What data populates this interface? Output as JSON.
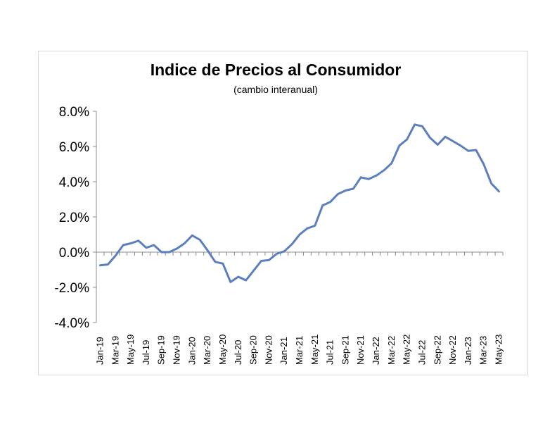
{
  "chart_data": {
    "type": "line",
    "title": "Indice de Precios al Consumidor",
    "subtitle": "(cambio interanual)",
    "xlabel": "",
    "ylabel": "",
    "ylim": [
      -4.0,
      8.0
    ],
    "y_ticks": [
      "8.0%",
      "6.0%",
      "4.0%",
      "2.0%",
      "0.0%",
      "-2.0%",
      "-4.0%"
    ],
    "y_tick_values": [
      8,
      6,
      4,
      2,
      0,
      -2,
      -4
    ],
    "x_tick_labels": [
      "Jan-19",
      "Mar-19",
      "May-19",
      "Jul-19",
      "Sep-19",
      "Nov-19",
      "Jan-20",
      "Mar-20",
      "May-20",
      "Jul-20",
      "Sep-20",
      "Nov-20",
      "Jan-21",
      "Mar-21",
      "May-21",
      "Jul-21",
      "Sep-21",
      "Nov-21",
      "Jan-22",
      "Mar-22",
      "May-22",
      "Jul-22",
      "Sep-22",
      "Nov-22",
      "Jan-23",
      "Mar-23",
      "May-23"
    ],
    "grid": false,
    "legend": "none",
    "line_color": "#5b7fbe",
    "series": [
      {
        "x": [
          "Jan-19",
          "Feb-19",
          "Mar-19",
          "Apr-19",
          "May-19",
          "Jun-19",
          "Jul-19",
          "Aug-19",
          "Sep-19",
          "Oct-19",
          "Nov-19",
          "Dec-19",
          "Jan-20",
          "Feb-20",
          "Mar-20",
          "Apr-20",
          "May-20",
          "Jun-20",
          "Jul-20",
          "Aug-20",
          "Sep-20",
          "Oct-20",
          "Nov-20",
          "Dec-20",
          "Jan-21",
          "Feb-21",
          "Mar-21",
          "Apr-21",
          "May-21",
          "Jun-21",
          "Jul-21",
          "Aug-21",
          "Sep-21",
          "Oct-21",
          "Nov-21",
          "Dec-21",
          "Jan-22",
          "Feb-22",
          "Mar-22",
          "Apr-22",
          "May-22",
          "Jun-22",
          "Jul-22",
          "Aug-22",
          "Sep-22",
          "Oct-22",
          "Nov-22",
          "Dec-22",
          "Jan-23",
          "Feb-23",
          "Mar-23",
          "Apr-23",
          "May-23"
        ],
        "values": [
          -0.75,
          -0.7,
          -0.2,
          0.4,
          0.5,
          0.65,
          0.25,
          0.4,
          0.0,
          0.0,
          0.2,
          0.5,
          0.95,
          0.7,
          0.1,
          -0.55,
          -0.65,
          -1.7,
          -1.4,
          -1.6,
          -1.05,
          -0.5,
          -0.45,
          -0.1,
          0.05,
          0.45,
          1.0,
          1.35,
          1.5,
          2.65,
          2.85,
          3.3,
          3.5,
          3.6,
          4.25,
          4.15,
          4.35,
          4.65,
          5.05,
          6.05,
          6.4,
          7.25,
          7.15,
          6.5,
          6.1,
          6.55,
          6.3,
          6.05,
          5.75,
          5.8,
          5.0,
          3.9,
          3.45
        ]
      }
    ]
  }
}
